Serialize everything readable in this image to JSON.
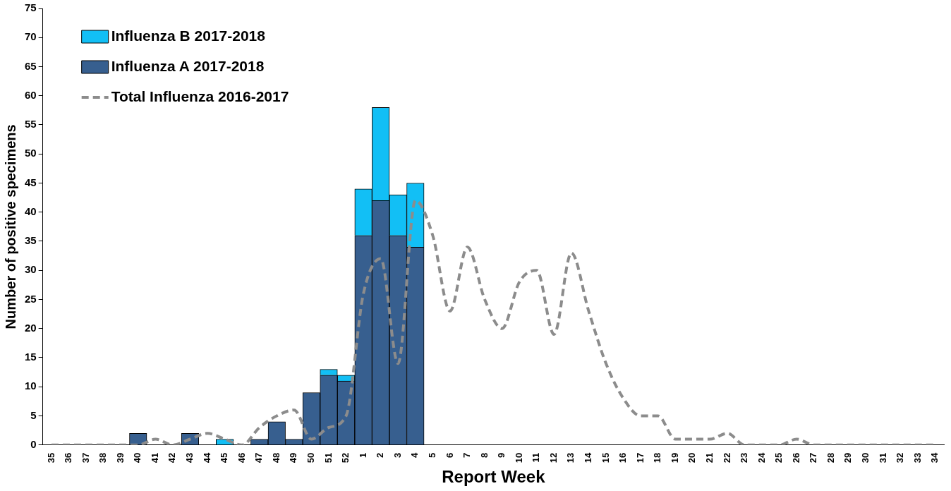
{
  "chart_data": {
    "type": "bar",
    "stacked": true,
    "xlabel": "Report Week",
    "ylabel": "Number of positive specimens",
    "categories": [
      "35",
      "36",
      "37",
      "38",
      "39",
      "40",
      "41",
      "42",
      "43",
      "44",
      "45",
      "46",
      "47",
      "48",
      "49",
      "50",
      "51",
      "52",
      "1",
      "2",
      "3",
      "4",
      "5",
      "6",
      "7",
      "8",
      "9",
      "10",
      "11",
      "12",
      "13",
      "14",
      "15",
      "16",
      "17",
      "18",
      "19",
      "20",
      "21",
      "22",
      "23",
      "24",
      "25",
      "26",
      "27",
      "28",
      "29",
      "30",
      "31",
      "32",
      "33",
      "34"
    ],
    "series": [
      {
        "name": "Influenza A 2017-2018",
        "color": "#375f8f",
        "values": [
          0,
          0,
          0,
          0,
          0,
          2,
          0,
          0,
          2,
          0,
          0,
          0,
          1,
          4,
          1,
          9,
          12,
          11,
          36,
          42,
          36,
          34,
          null,
          null,
          null,
          null,
          null,
          null,
          null,
          null,
          null,
          null,
          null,
          null,
          null,
          null,
          null,
          null,
          null,
          null,
          null,
          null,
          null,
          null,
          null,
          null,
          null,
          null,
          null,
          null,
          null,
          null
        ]
      },
      {
        "name": "Influenza B 2017-2018",
        "color": "#12bff5",
        "values": [
          0,
          0,
          0,
          0,
          0,
          0,
          0,
          0,
          0,
          0,
          1,
          0,
          0,
          0,
          0,
          0,
          1,
          1,
          8,
          16,
          7,
          11,
          null,
          null,
          null,
          null,
          null,
          null,
          null,
          null,
          null,
          null,
          null,
          null,
          null,
          null,
          null,
          null,
          null,
          null,
          null,
          null,
          null,
          null,
          null,
          null,
          null,
          null,
          null,
          null,
          null,
          null
        ]
      },
      {
        "name": "Total Influenza 2016-2017",
        "type": "line",
        "color": "#8c8c8c",
        "line_style": "dashed",
        "marker": "none",
        "values": [
          0,
          0,
          0,
          0,
          0,
          0,
          1,
          0,
          1,
          2,
          1,
          0,
          3,
          5,
          6,
          1,
          3,
          5,
          26,
          32,
          14,
          42,
          36,
          23,
          34,
          25,
          20,
          28,
          30,
          19,
          33,
          23,
          14,
          8,
          5,
          5,
          1,
          1,
          1,
          2,
          0,
          0,
          0,
          1,
          0,
          0,
          0,
          0,
          0,
          0,
          0,
          0
        ]
      }
    ],
    "ylim": [
      0,
      75
    ],
    "yticks": [
      0,
      5,
      10,
      15,
      20,
      25,
      30,
      35,
      40,
      45,
      50,
      55,
      60,
      65,
      70,
      75
    ],
    "grid": false,
    "legend": "top left"
  }
}
